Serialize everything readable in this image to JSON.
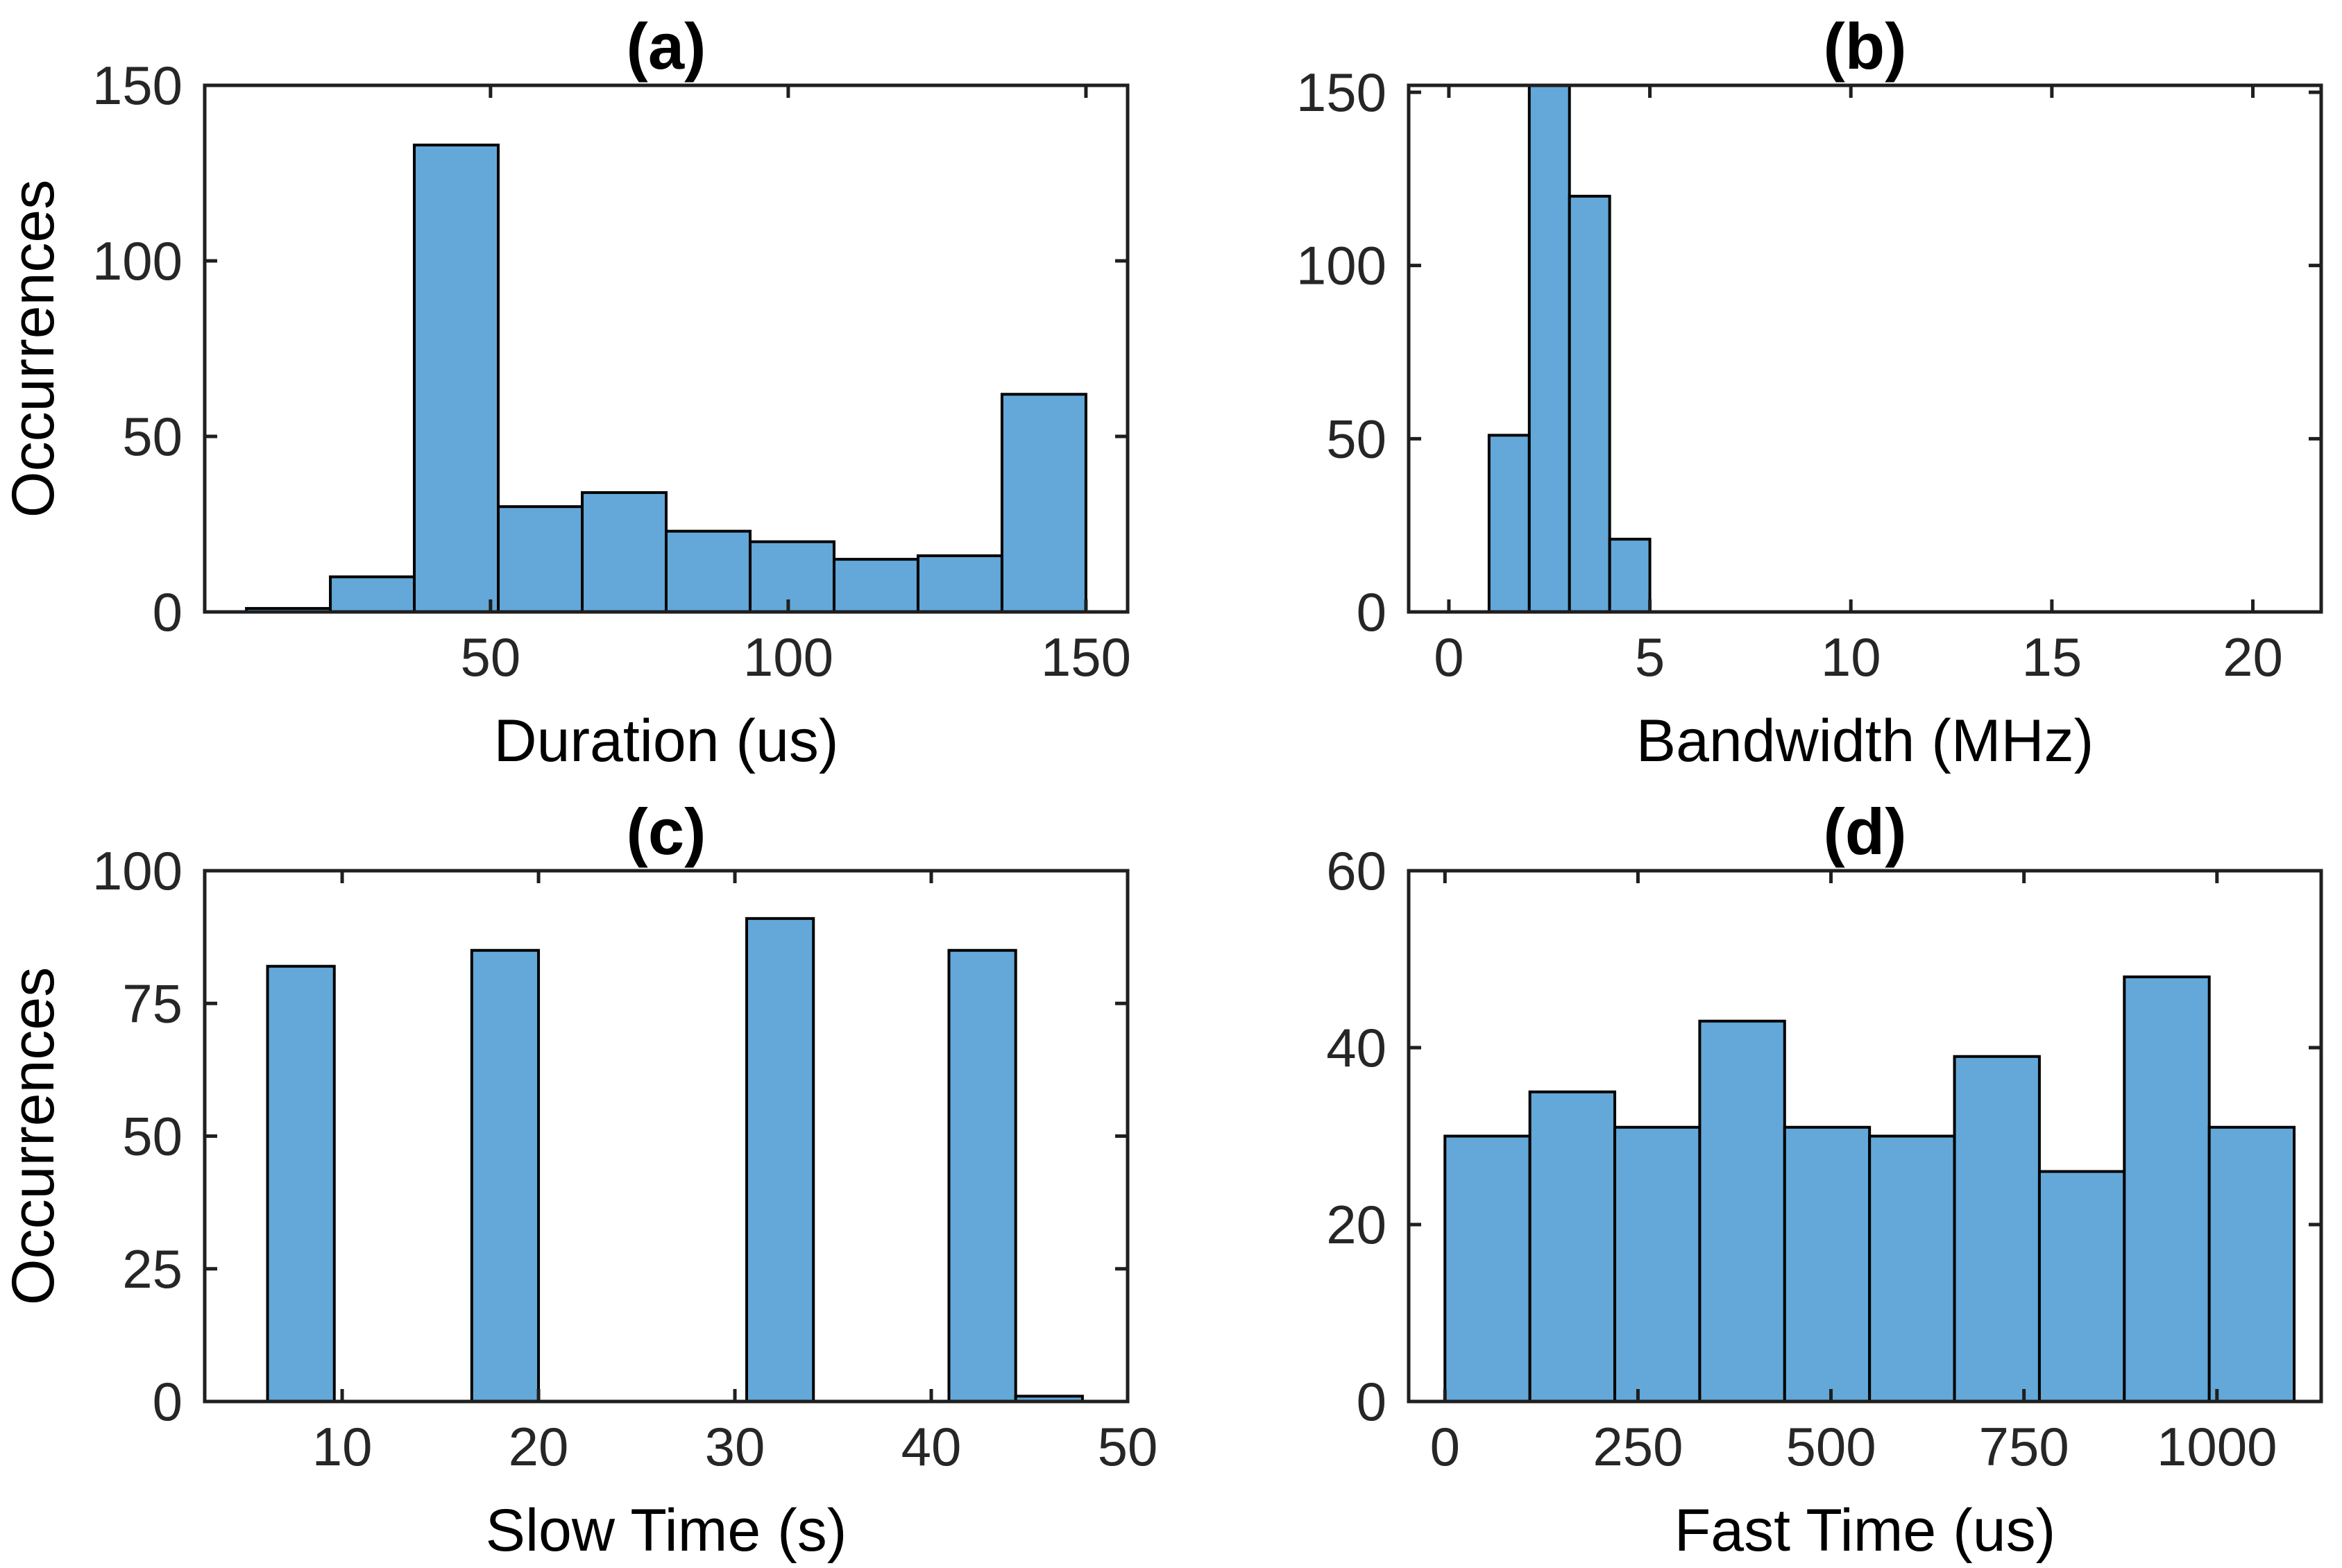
{
  "figure": {
    "background": "#FFFFFF",
    "bar_fill": "#63A8D8",
    "bar_edge": "#000000",
    "axis_color": "#1F1F1F",
    "tick_label_color": "#262626",
    "text_color": "#000000"
  },
  "chart_data": [
    {
      "type": "bar",
      "subtype": "histogram",
      "title": "(a)",
      "xlabel": "Duration (us)",
      "ylabel": "Occurrences",
      "xlim": [
        2,
        157
      ],
      "ylim": [
        0,
        150
      ],
      "xticks": [
        50,
        100,
        150
      ],
      "yticks": [
        0,
        50,
        100,
        150
      ],
      "grid": false,
      "legend": null,
      "bin_edges": [
        9,
        23.1,
        37.2,
        51.3,
        65.4,
        79.5,
        93.6,
        107.7,
        121.8,
        135.9,
        150
      ],
      "counts": [
        1,
        10,
        133,
        30,
        34,
        23,
        20,
        15,
        16,
        62
      ]
    },
    {
      "type": "bar",
      "subtype": "histogram",
      "title": "(b)",
      "xlabel": "Bandwidth (MHz)",
      "ylabel": "",
      "xlim": [
        -1,
        21.7
      ],
      "ylim": [
        0,
        152
      ],
      "xticks": [
        0,
        5,
        10,
        15,
        20
      ],
      "yticks": [
        0,
        50,
        100,
        150
      ],
      "grid": false,
      "legend": null,
      "bin_edges": [
        1,
        2,
        3,
        4,
        5
      ],
      "counts": [
        51,
        152,
        120,
        21
      ]
    },
    {
      "type": "bar",
      "subtype": "histogram",
      "title": "(c)",
      "xlabel": "Slow Time (s)",
      "ylabel": "Occurrences",
      "xlim": [
        3,
        50
      ],
      "ylim": [
        0,
        100
      ],
      "xticks": [
        10,
        20,
        30,
        40,
        50
      ],
      "yticks": [
        0,
        25,
        50,
        75,
        100
      ],
      "grid": false,
      "legend": null,
      "bars": [
        {
          "x0": 6.2,
          "x1": 9.6,
          "count": 82
        },
        {
          "x0": 16.6,
          "x1": 20.0,
          "count": 85
        },
        {
          "x0": 30.6,
          "x1": 34.0,
          "count": 91
        },
        {
          "x0": 40.9,
          "x1": 44.3,
          "count": 85
        },
        {
          "x0": 44.3,
          "x1": 47.7,
          "count": 1
        }
      ]
    },
    {
      "type": "bar",
      "subtype": "histogram",
      "title": "(d)",
      "xlabel": "Fast Time (us)",
      "ylabel": "",
      "xlim": [
        -47,
        1135
      ],
      "ylim": [
        0,
        60
      ],
      "xticks": [
        0,
        250,
        500,
        750,
        1000
      ],
      "yticks": [
        0,
        20,
        40,
        60
      ],
      "grid": false,
      "legend": null,
      "bin_edges": [
        0,
        110,
        220,
        330,
        440,
        550,
        660,
        770,
        880,
        990,
        1100
      ],
      "counts": [
        30,
        35,
        31,
        43,
        31,
        30,
        39,
        26,
        48,
        31
      ]
    }
  ]
}
